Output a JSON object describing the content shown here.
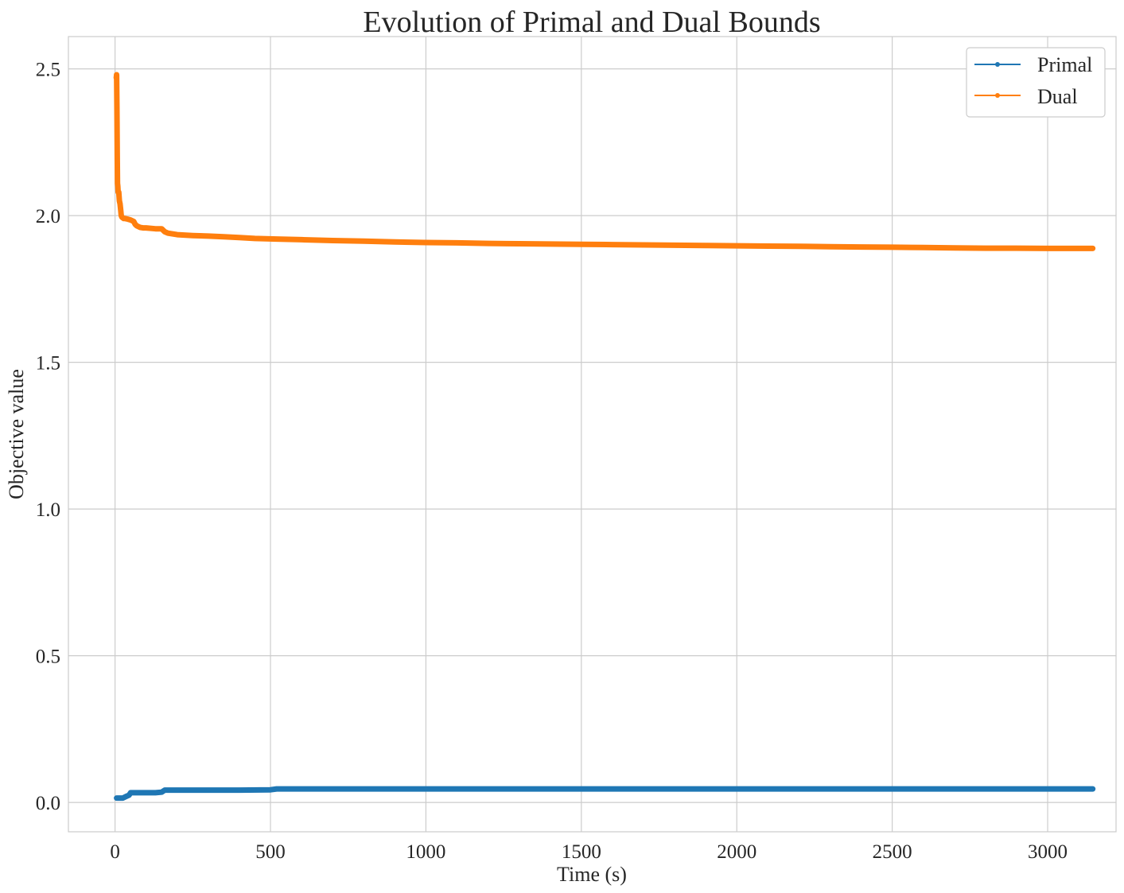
{
  "chart_data": {
    "type": "line",
    "title": "Evolution of Primal and Dual Bounds",
    "xlabel": "Time (s)",
    "ylabel": "Objective value",
    "xlim": [
      -150,
      3220
    ],
    "ylim": [
      -0.1,
      2.61
    ],
    "x_ticks": [
      {
        "value": 0,
        "label": "0"
      },
      {
        "value": 500,
        "label": "500"
      },
      {
        "value": 1000,
        "label": "1000"
      },
      {
        "value": 1500,
        "label": "1500"
      },
      {
        "value": 2000,
        "label": "2000"
      },
      {
        "value": 2500,
        "label": "2500"
      },
      {
        "value": 3000,
        "label": "3000"
      }
    ],
    "y_ticks": [
      {
        "value": 0.0,
        "label": "0.0"
      },
      {
        "value": 0.5,
        "label": "0.5"
      },
      {
        "value": 1.0,
        "label": "1.0"
      },
      {
        "value": 1.5,
        "label": "1.5"
      },
      {
        "value": 2.0,
        "label": "2.0"
      },
      {
        "value": 2.5,
        "label": "2.5"
      }
    ],
    "grid": true,
    "legend_position": "top-right",
    "series": [
      {
        "name": "Primal",
        "color": "#1f77b4",
        "x": [
          5,
          15,
          25,
          35,
          45,
          50,
          70,
          100,
          130,
          150,
          160,
          200,
          300,
          400,
          500,
          520,
          600,
          800,
          1000,
          1500,
          2000,
          2500,
          3000,
          3145
        ],
        "y": [
          0.015,
          0.015,
          0.015,
          0.02,
          0.025,
          0.033,
          0.033,
          0.033,
          0.033,
          0.035,
          0.042,
          0.042,
          0.042,
          0.042,
          0.043,
          0.046,
          0.046,
          0.046,
          0.046,
          0.046,
          0.046,
          0.046,
          0.046,
          0.046
        ]
      },
      {
        "name": "Dual",
        "color": "#ff7f0e",
        "x": [
          4,
          5,
          6,
          7,
          8,
          9,
          10,
          12,
          14,
          16,
          18,
          20,
          22,
          25,
          28,
          32,
          40,
          50,
          60,
          65,
          70,
          80,
          90,
          100,
          130,
          150,
          160,
          170,
          200,
          250,
          300,
          350,
          400,
          450,
          520,
          600,
          700,
          800,
          900,
          1000,
          1100,
          1200,
          1300,
          1400,
          1500,
          1600,
          1700,
          1800,
          1900,
          2000,
          2100,
          2200,
          2300,
          2400,
          2500,
          2600,
          2700,
          2800,
          2900,
          3000,
          3100,
          3145
        ],
        "y": [
          2.47,
          2.48,
          2.36,
          2.2,
          2.11,
          2.1,
          2.08,
          2.08,
          2.05,
          2.04,
          2.02,
          2.0,
          1.995,
          1.992,
          1.99,
          1.99,
          1.988,
          1.985,
          1.98,
          1.97,
          1.965,
          1.96,
          1.958,
          1.958,
          1.955,
          1.955,
          1.945,
          1.94,
          1.935,
          1.932,
          1.93,
          1.928,
          1.925,
          1.922,
          1.92,
          1.918,
          1.915,
          1.913,
          1.91,
          1.908,
          1.907,
          1.905,
          1.904,
          1.903,
          1.902,
          1.901,
          1.9,
          1.899,
          1.898,
          1.897,
          1.896,
          1.895,
          1.894,
          1.893,
          1.892,
          1.891,
          1.89,
          1.889,
          1.889,
          1.888,
          1.888,
          1.888
        ]
      }
    ]
  }
}
